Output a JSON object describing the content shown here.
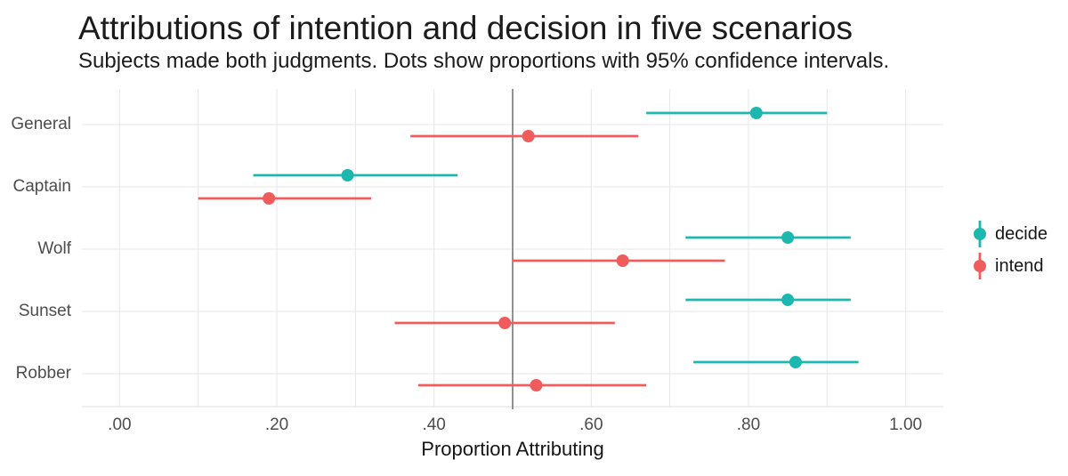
{
  "title": "Attributions of intention and decision in five scenarios",
  "subtitle": "Subjects made both judgments. Dots show proportions with 95% confidence intervals.",
  "chart_data": {
    "type": "scatter",
    "style": "horizontal dot plot with 95% CI pointranges, dodged by series",
    "title": "Attributions of intention and decision in five scenarios",
    "subtitle": "Subjects made both judgments. Dots show proportions with 95% confidence intervals.",
    "categories": [
      "General",
      "Captain",
      "Wolf",
      "Sunset",
      "Robber"
    ],
    "series": [
      {
        "name": "decide",
        "color": "#1cb7af",
        "values": [
          0.81,
          0.29,
          0.85,
          0.85,
          0.86
        ],
        "ci_low": [
          0.67,
          0.17,
          0.72,
          0.72,
          0.73
        ],
        "ci_high": [
          0.9,
          0.43,
          0.93,
          0.93,
          0.94
        ]
      },
      {
        "name": "intend",
        "color": "#f05b5c",
        "values": [
          0.52,
          0.19,
          0.64,
          0.49,
          0.53
        ],
        "ci_low": [
          0.37,
          0.1,
          0.5,
          0.35,
          0.38
        ],
        "ci_high": [
          0.66,
          0.32,
          0.77,
          0.63,
          0.67
        ]
      }
    ],
    "xlabel": "Proportion Attributing",
    "ylabel": "",
    "x_ticks": [
      ".00",
      ".20",
      ".40",
      ".60",
      ".80",
      "1.00"
    ],
    "x_tick_values": [
      0,
      0.2,
      0.4,
      0.6,
      0.8,
      1.0
    ],
    "x_grid_step": 0.1,
    "xlim": [
      -0.048,
      1.048
    ],
    "reference_line_x": 0.5,
    "grid": "on",
    "legend_position": "right",
    "colors": {
      "grid_line": "#e7e7e7",
      "axis_line": "#dedede",
      "reference_line": "#787878",
      "tick_label": "#4d4d4d",
      "text": "#1b1b1b"
    }
  }
}
